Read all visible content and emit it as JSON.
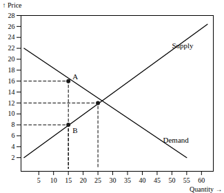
{
  "chart_data": {
    "type": "line",
    "x_label": "Quantity",
    "y_label": "Price",
    "xlim": [
      -1,
      64
    ],
    "ylim": [
      -0.5,
      28
    ],
    "xticks": [
      5,
      10,
      15,
      20,
      25,
      30,
      35,
      40,
      45,
      50,
      55,
      60
    ],
    "yticks": [
      2,
      4,
      6,
      8,
      10,
      12,
      14,
      16,
      18,
      20,
      22,
      24,
      26,
      28
    ],
    "grid": false,
    "series": [
      {
        "type": "line",
        "line_style": "solid",
        "color": "#000000",
        "x": [
          0,
          62
        ],
        "values": [
          2,
          26.4
        ]
      },
      {
        "type": "line",
        "line_style": "solid",
        "color": "#000000",
        "x": [
          0,
          55
        ],
        "values": [
          22,
          2
        ]
      },
      {
        "type": "line",
        "line_style": "dashed",
        "color": "#000000",
        "x": [
          0,
          15,
          15
        ],
        "values": [
          16,
          16,
          0
        ]
      },
      {
        "type": "line",
        "line_style": "dashed",
        "color": "#000000",
        "x": [
          0,
          15,
          15
        ],
        "values": [
          8,
          8,
          0
        ]
      },
      {
        "type": "line",
        "line_style": "dashed",
        "color": "#000000",
        "x": [
          0,
          25,
          25
        ],
        "values": [
          12,
          12,
          0
        ]
      },
      {
        "type": "scatter",
        "marker": "circle",
        "color": "#1a1a1a",
        "x": [
          15,
          15,
          25
        ],
        "values": [
          16,
          8,
          12
        ]
      }
    ],
    "annotations": [
      {
        "text": "A",
        "x": 15,
        "y": 16
      },
      {
        "text": "B",
        "x": 15,
        "y": 8
      },
      {
        "text": "Supply",
        "x": 50,
        "y": 22.5
      },
      {
        "text": "Demand",
        "x": 47,
        "y": 5.2
      }
    ]
  }
}
